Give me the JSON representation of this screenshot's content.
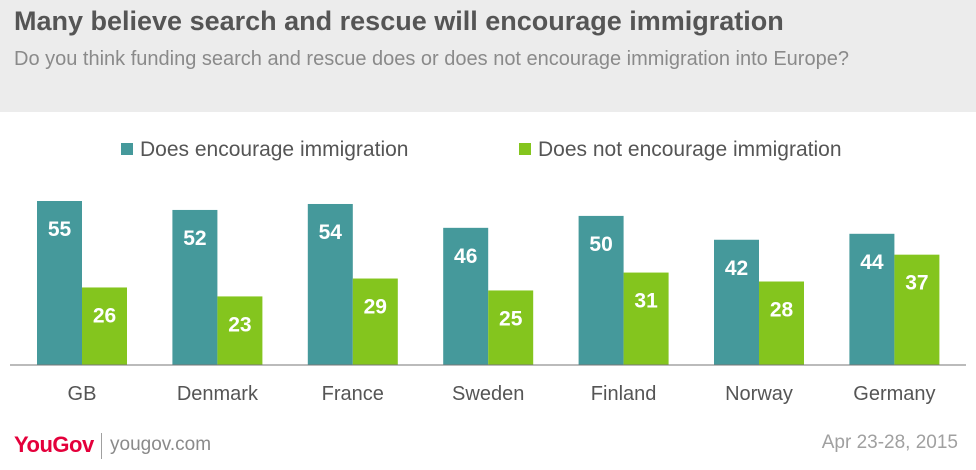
{
  "header": {
    "title": "Many believe search and rescue will encourage immigration",
    "subtitle": "Do you think funding search and rescue does or does not encourage immigration into Europe?"
  },
  "footer": {
    "logo": "YouGov",
    "url": "yougov.com",
    "date": "Apr 23-28, 2015"
  },
  "colors": {
    "encourage": "#45999b",
    "not_encourage": "#84c51e",
    "label": "#ffffff",
    "axis": "#777777"
  },
  "chart_data": {
    "type": "bar",
    "categories": [
      "GB",
      "Denmark",
      "France",
      "Sweden",
      "Finland",
      "Norway",
      "Germany"
    ],
    "series": [
      {
        "name": "Does encourage immigration",
        "values": [
          55,
          52,
          54,
          46,
          50,
          42,
          44
        ]
      },
      {
        "name": "Does not encourage immigration",
        "values": [
          26,
          23,
          29,
          25,
          31,
          28,
          37
        ]
      }
    ],
    "ylim": [
      0,
      60
    ],
    "legend": "top-center",
    "grid": false,
    "data_labels": true
  }
}
